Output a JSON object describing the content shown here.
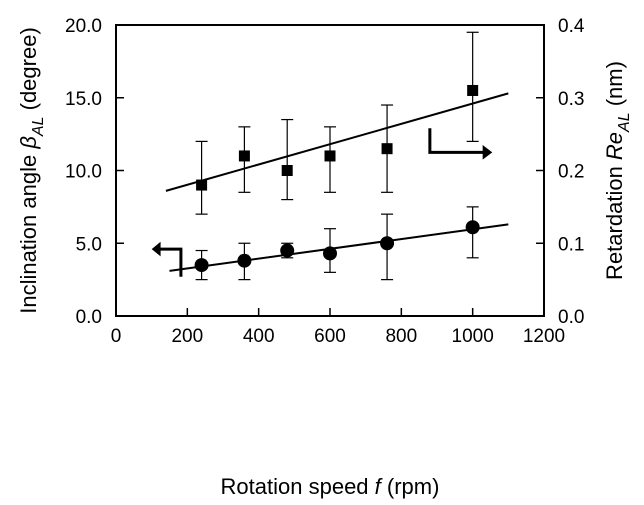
{
  "chart_data": {
    "type": "scatter",
    "x_axis": {
      "range": [
        0,
        1200
      ],
      "ticks": [
        0,
        200,
        400,
        600,
        800,
        1000,
        1200
      ],
      "tick_labels": [
        "0",
        "200",
        "400",
        "600",
        "800",
        "1000",
        "1200"
      ],
      "label": {
        "prefix": "Rotation speed ",
        "symbol": "f",
        "suffix": " (rpm)"
      }
    },
    "y_left_axis": {
      "range": [
        0,
        20
      ],
      "ticks": [
        0,
        5,
        10,
        15,
        20
      ],
      "tick_labels": [
        "0.0",
        "5.0",
        "10.0",
        "15.0",
        "20.0"
      ],
      "label": {
        "prefix": "Inclination angle ",
        "symbol": "β",
        "subscript": "AL",
        "suffix": " (degree)"
      }
    },
    "y_right_axis": {
      "range": [
        0,
        0.4
      ],
      "ticks": [
        0,
        0.1,
        0.2,
        0.3,
        0.4
      ],
      "tick_labels": [
        "0.0",
        "0.1",
        "0.2",
        "0.3",
        "0.4"
      ],
      "label": {
        "prefix": "Retardation ",
        "symbol": "Re",
        "subscript": "AL",
        "suffix": " (nm)"
      }
    },
    "series": [
      {
        "axis": "left",
        "marker": "circle",
        "points": [
          {
            "x": 240,
            "y": 3.5,
            "err_low": 2.5,
            "err_high": 4.5
          },
          {
            "x": 360,
            "y": 3.8,
            "err_low": 2.5,
            "err_high": 5.0
          },
          {
            "x": 480,
            "y": 4.5,
            "err_low": 4.0,
            "err_high": 5.0
          },
          {
            "x": 600,
            "y": 4.3,
            "err_low": 3.0,
            "err_high": 6.0
          },
          {
            "x": 760,
            "y": 5.0,
            "err_low": 2.5,
            "err_high": 7.0
          },
          {
            "x": 1000,
            "y": 6.1,
            "err_low": 4.0,
            "err_high": 7.5
          }
        ],
        "fit": {
          "x": [
            150,
            1100
          ],
          "y": [
            3.1,
            6.3
          ]
        }
      },
      {
        "axis": "right",
        "marker": "square",
        "points": [
          {
            "x": 240,
            "y": 0.18,
            "err_low": 0.14,
            "err_high": 0.24
          },
          {
            "x": 360,
            "y": 0.22,
            "err_low": 0.17,
            "err_high": 0.26
          },
          {
            "x": 480,
            "y": 0.2,
            "err_low": 0.16,
            "err_high": 0.27
          },
          {
            "x": 600,
            "y": 0.22,
            "err_low": 0.17,
            "err_high": 0.26
          },
          {
            "x": 760,
            "y": 0.23,
            "err_low": 0.17,
            "err_high": 0.29
          },
          {
            "x": 1000,
            "y": 0.31,
            "err_low": 0.24,
            "err_high": 0.39
          }
        ],
        "fit": {
          "x": [
            140,
            1100
          ],
          "y": [
            0.172,
            0.306
          ]
        }
      }
    ],
    "annotations": [
      {
        "type": "arrow",
        "points_to": "left",
        "series": 0
      },
      {
        "type": "arrow",
        "points_to": "right",
        "series": 1
      }
    ],
    "grid": false,
    "legend": "none"
  }
}
